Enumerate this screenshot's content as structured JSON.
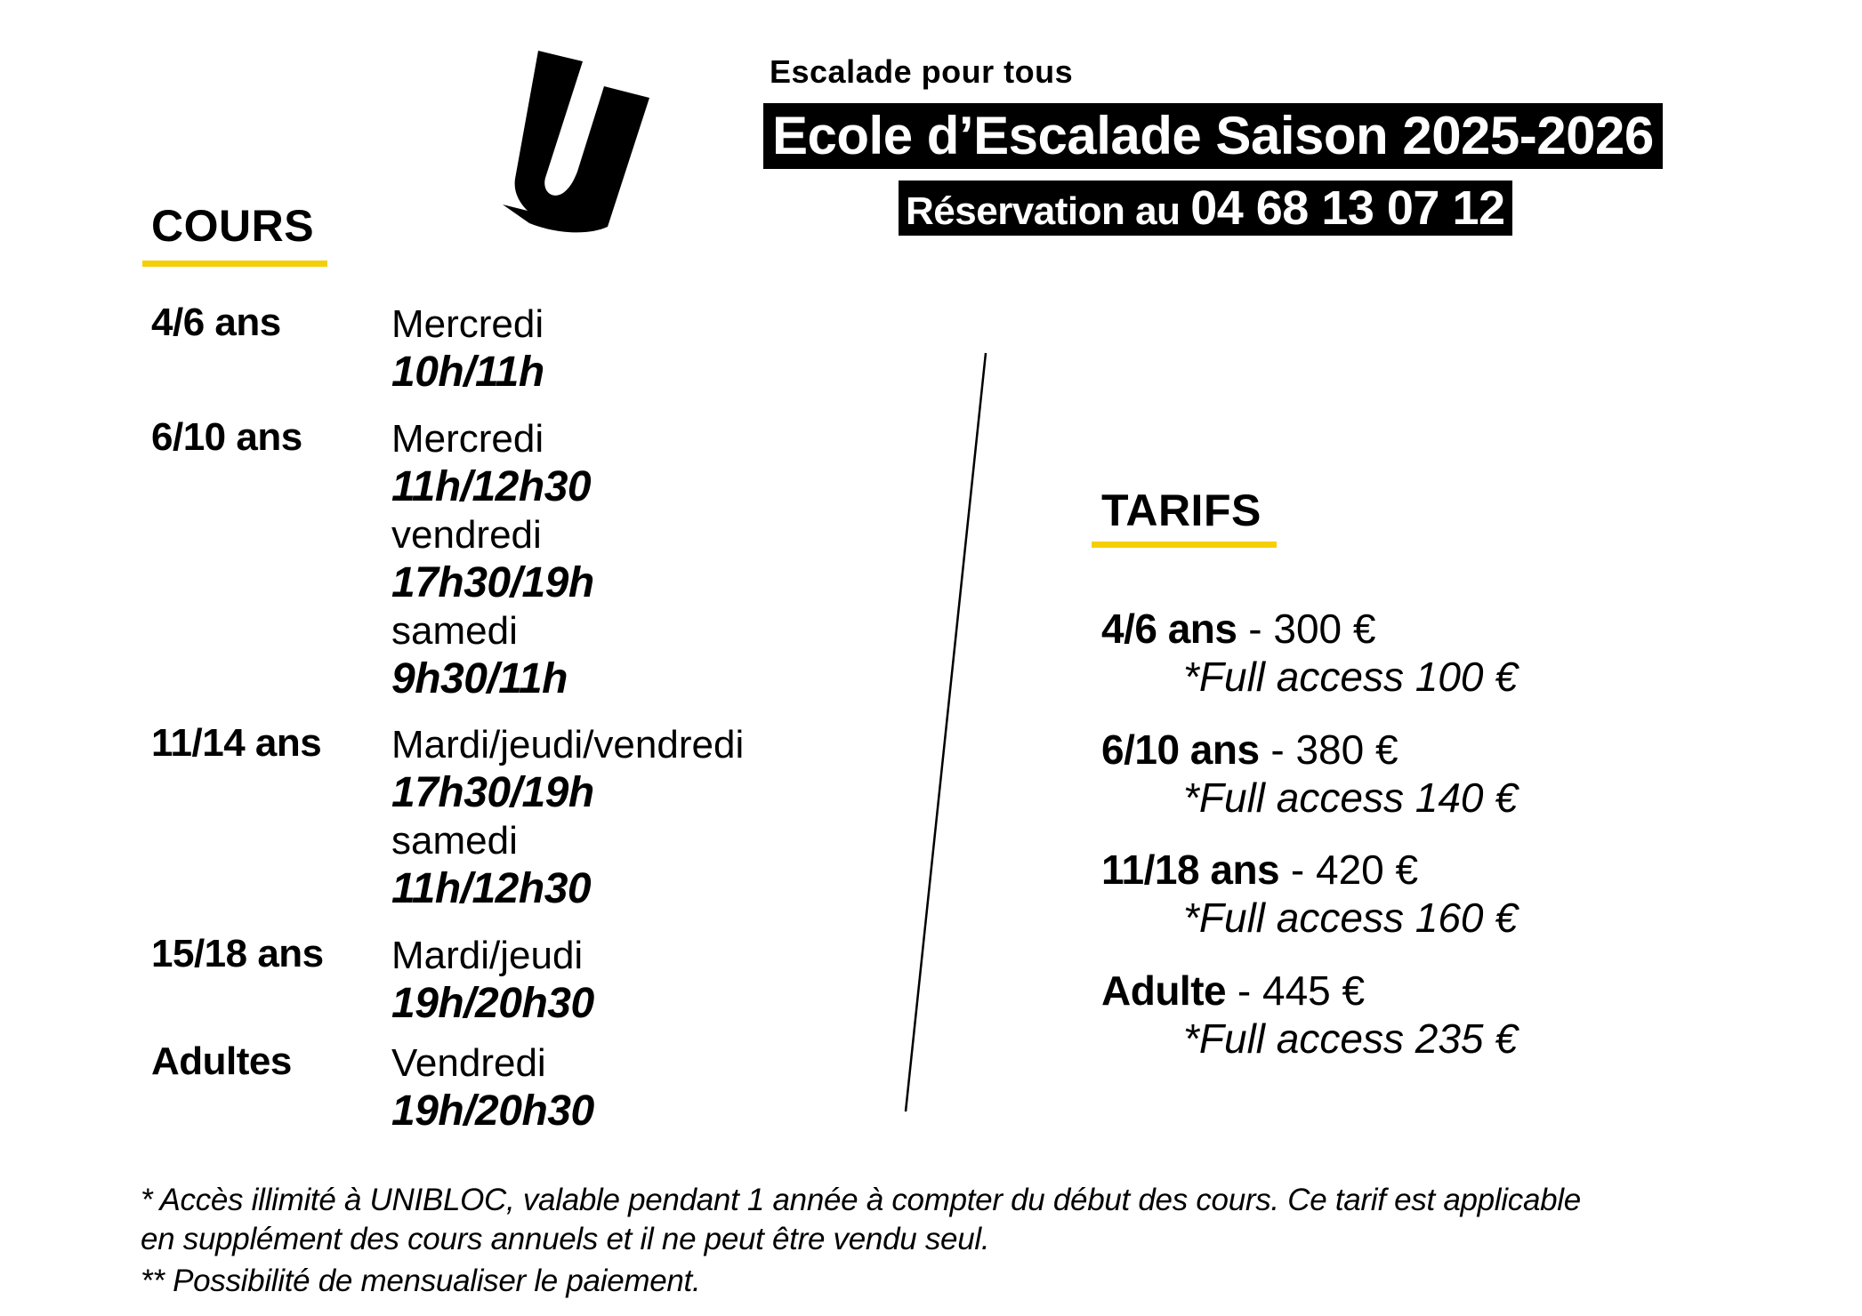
{
  "header": {
    "subtitle": "Escalade pour tous",
    "title": "Ecole d’Escalade Saison 2025-2026",
    "reservation_label": "Réservation au ",
    "reservation_phone": "04 68 13 07 12"
  },
  "courses": {
    "heading": "COURS",
    "groups": [
      {
        "age": "4/6 ans",
        "slots": [
          {
            "day": "Mercredi",
            "time": "10h/11h"
          }
        ]
      },
      {
        "age": "6/10 ans",
        "slots": [
          {
            "day": "Mercredi",
            "time": "11h/12h30"
          },
          {
            "day": "vendredi",
            "time": "17h30/19h"
          },
          {
            "day": "samedi",
            "time": "9h30/11h"
          }
        ]
      },
      {
        "age": "11/14 ans",
        "slots": [
          {
            "day": "Mardi/jeudi/vendredi",
            "time": "17h30/19h"
          },
          {
            "day": "samedi",
            "time": "11h/12h30"
          }
        ]
      },
      {
        "age": "15/18 ans",
        "slots": [
          {
            "day": "Mardi/jeudi",
            "time": "19h/20h30"
          }
        ]
      },
      {
        "age": "Adultes",
        "slots": [
          {
            "day": "Vendredi",
            "time": "19h/20h30"
          }
        ]
      }
    ]
  },
  "tarifs": {
    "heading": "TARIFS",
    "separator": " - ",
    "items": [
      {
        "age": "4/6 ans",
        "price": "300 €",
        "full_access": "*Full access 100 €"
      },
      {
        "age": "6/10 ans",
        "price": "380 €",
        "full_access": "*Full access 140 €"
      },
      {
        "age": "11/18 ans",
        "price": "420 €",
        "full_access": "*Full access 160 €"
      },
      {
        "age": "Adulte",
        "price": "445 €",
        "full_access": "*Full access 235 €"
      }
    ]
  },
  "notes": {
    "line1": "* Accès illimité à UNIBLOC, valable pendant 1 année à compter du début des cours. Ce tarif est applicable",
    "line2": "en supplément des cours annuels et il ne peut être vendu seul.",
    "line3": "** Possibilité de mensualiser le paiement."
  },
  "colors": {
    "accent": "#f5cf06",
    "text": "#000000",
    "background": "#ffffff"
  }
}
